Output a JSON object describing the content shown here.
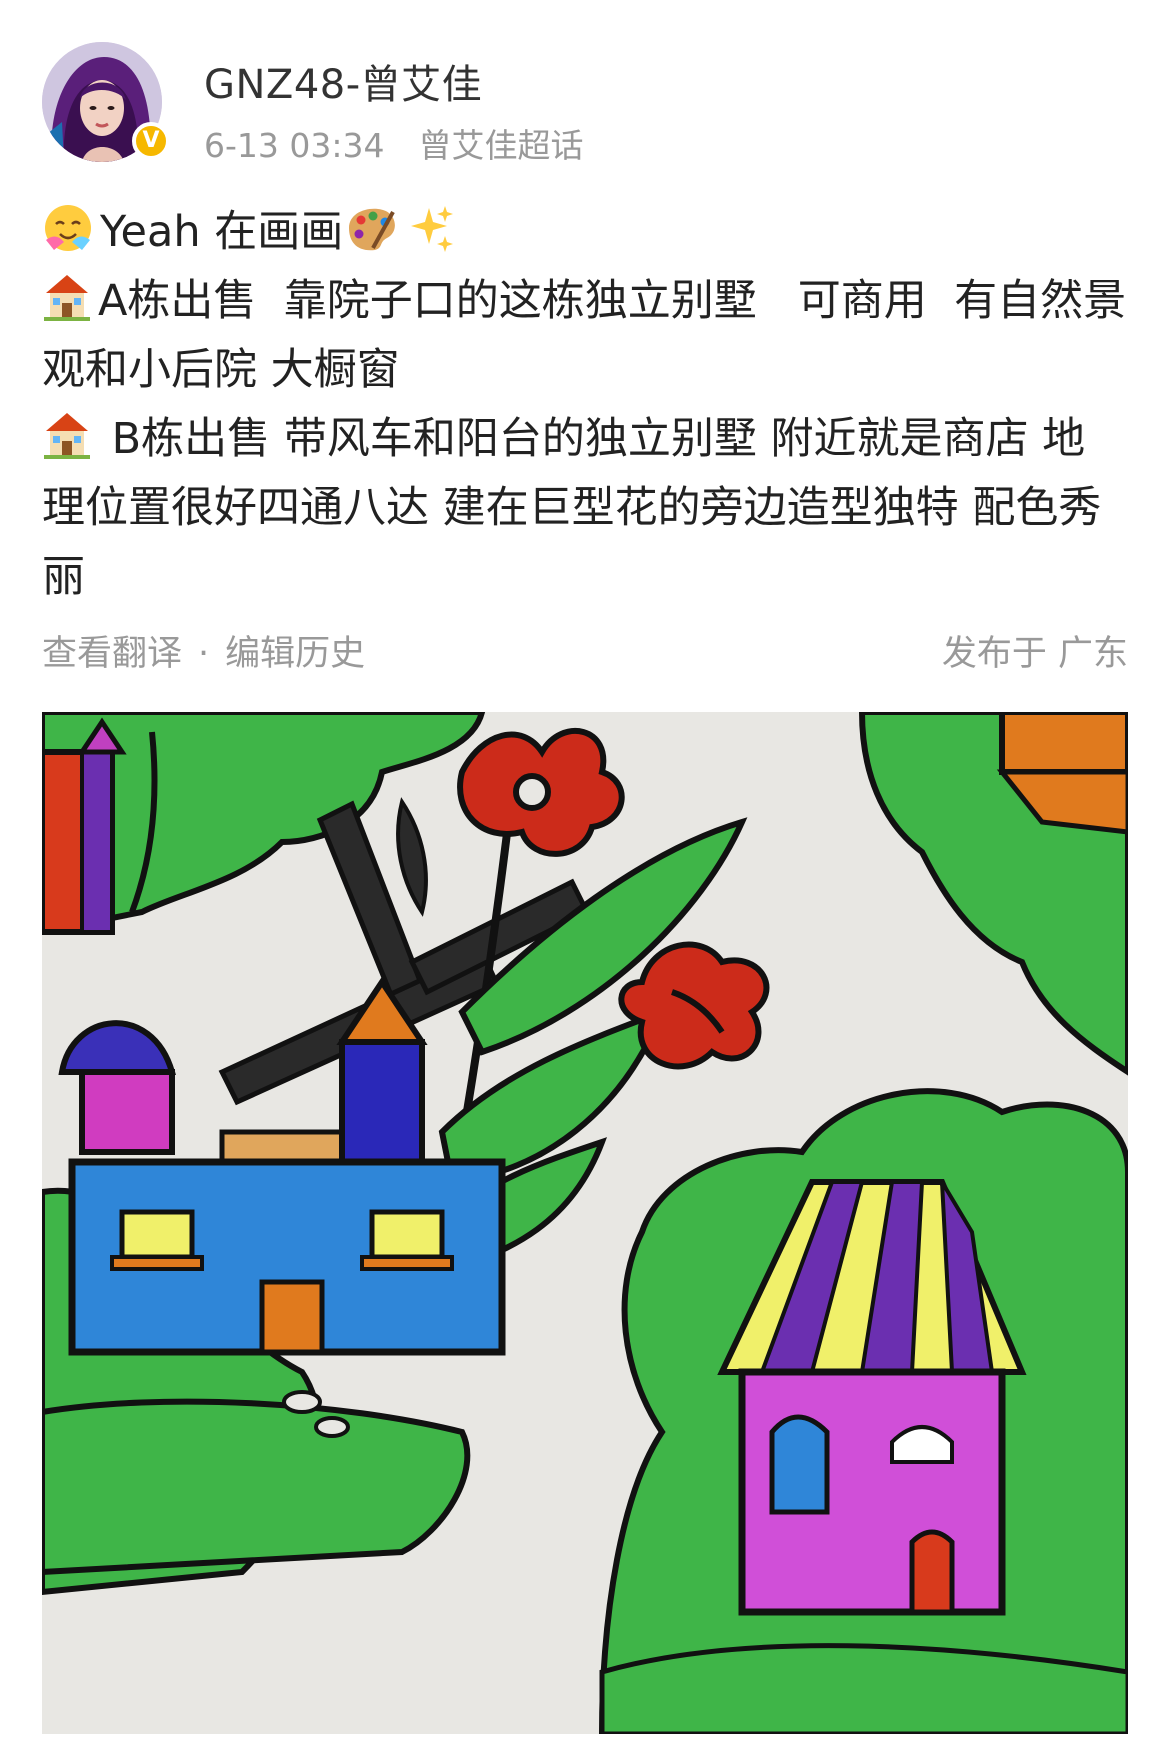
{
  "user": {
    "name": "GNZ48-曾艾佳",
    "time": "6-13 03:34",
    "topic": "曾艾佳超话",
    "verified_badge": "V"
  },
  "post": {
    "lines": [
      "Yeah 在画画",
      "A栋出售  靠院子口的这栋独立别墅   可商用  有自然景观和小后院 大橱窗",
      " B栋出售 带风车和阳台的独立别墅 附近就是商店 地理位置很好四通八达 建在巨型花的旁边造型独特 配色秀丽"
    ],
    "icons": [
      "hug-emoji-icon",
      "palette-icon",
      "sparkles-icon",
      "house-icon",
      "house-icon"
    ]
  },
  "actions": {
    "translate": "查看翻译",
    "separator": "·",
    "edit_history": "编辑历史",
    "location": "发布于 广东"
  },
  "colors": {
    "text": "#222222",
    "secondary": "#999999",
    "badge": "#f6b800"
  }
}
